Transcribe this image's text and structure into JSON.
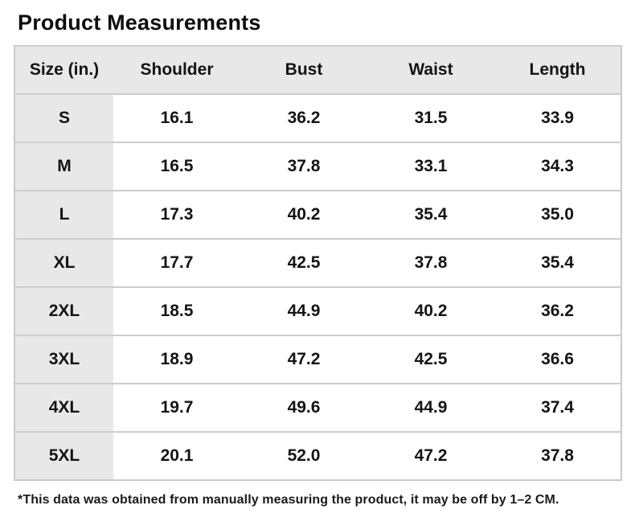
{
  "title": "Product Measurements",
  "table": {
    "columns": [
      "Size (in.)",
      "Shoulder",
      "Bust",
      "Waist",
      "Length"
    ],
    "rows": [
      {
        "size": "S",
        "values": [
          "16.1",
          "36.2",
          "31.5",
          "33.9"
        ]
      },
      {
        "size": "M",
        "values": [
          "16.5",
          "37.8",
          "33.1",
          "34.3"
        ]
      },
      {
        "size": "L",
        "values": [
          "17.3",
          "40.2",
          "35.4",
          "35.0"
        ]
      },
      {
        "size": "XL",
        "values": [
          "17.7",
          "42.5",
          "37.8",
          "35.4"
        ]
      },
      {
        "size": "2XL",
        "values": [
          "18.5",
          "44.9",
          "40.2",
          "36.2"
        ]
      },
      {
        "size": "3XL",
        "values": [
          "18.9",
          "47.2",
          "42.5",
          "36.6"
        ]
      },
      {
        "size": "4XL",
        "values": [
          "19.7",
          "49.6",
          "44.9",
          "37.4"
        ]
      },
      {
        "size": "5XL",
        "values": [
          "20.1",
          "52.0",
          "47.2",
          "37.8"
        ]
      }
    ]
  },
  "footnote": "*This data was obtained from manually measuring the product, it may be off by 1–2 CM.",
  "colors": {
    "header_bg": "#e8e8e8",
    "border": "#cdcdcd",
    "text": "#141414",
    "background": "#ffffff"
  },
  "chart_data": {
    "type": "table",
    "title": "Product Measurements",
    "units": "in.",
    "columns": [
      "Size (in.)",
      "Shoulder",
      "Bust",
      "Waist",
      "Length"
    ],
    "rows": [
      [
        "S",
        16.1,
        36.2,
        31.5,
        33.9
      ],
      [
        "M",
        16.5,
        37.8,
        33.1,
        34.3
      ],
      [
        "L",
        17.3,
        40.2,
        35.4,
        35.0
      ],
      [
        "XL",
        17.7,
        42.5,
        37.8,
        35.4
      ],
      [
        "2XL",
        18.5,
        44.9,
        40.2,
        36.2
      ],
      [
        "3XL",
        18.9,
        47.2,
        42.5,
        36.6
      ],
      [
        "4XL",
        19.7,
        49.6,
        44.9,
        37.4
      ],
      [
        "5XL",
        20.1,
        52.0,
        47.2,
        37.8
      ]
    ],
    "note": "*This data was obtained from manually measuring the product, it may be off by 1–2 CM."
  }
}
